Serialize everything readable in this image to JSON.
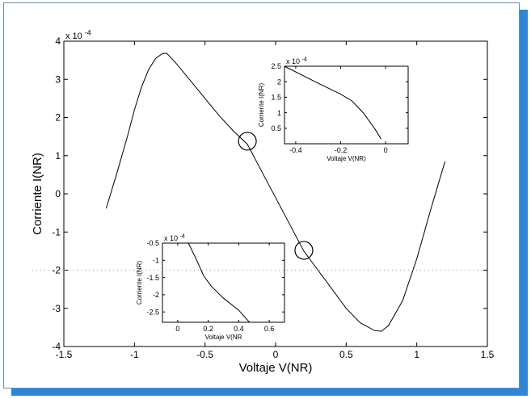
{
  "colors": {
    "frame_shadow": "#2f86d6",
    "line": "#000000",
    "background": "#ffffff"
  },
  "chart_data": [
    {
      "id": "main",
      "type": "line",
      "xlabel": "Voltaje V(NR)",
      "ylabel": "Corriente I(NR)",
      "y_exponent": "x 10",
      "y_exponent_power": "-4",
      "xlim": [
        -1.5,
        1.5
      ],
      "ylim": [
        -4,
        4
      ],
      "xticks": [
        -1.5,
        -1,
        -0.5,
        0,
        0.5,
        1,
        1.5
      ],
      "yticks": [
        -4,
        -3,
        -2,
        -1,
        0,
        1,
        2,
        3,
        4
      ],
      "grid": false,
      "series": [
        {
          "x": [
            -1.2,
            -1.12,
            -1.05,
            -1.0,
            -0.95,
            -0.9,
            -0.85,
            -0.8,
            -0.77,
            -0.7,
            -0.6,
            -0.5,
            -0.4,
            -0.3,
            -0.2,
            -0.1,
            0.0,
            0.1,
            0.2,
            0.3,
            0.4,
            0.5,
            0.6,
            0.7,
            0.75,
            0.8,
            0.9,
            1.0,
            1.1,
            1.2
          ],
          "y": [
            -0.38,
            0.6,
            1.5,
            2.2,
            2.8,
            3.25,
            3.55,
            3.68,
            3.68,
            3.4,
            2.95,
            2.5,
            2.05,
            1.65,
            1.3,
            0.6,
            -0.1,
            -0.8,
            -1.5,
            -2.0,
            -2.5,
            -3.0,
            -3.38,
            -3.58,
            -3.6,
            -3.45,
            -2.8,
            -1.7,
            -0.4,
            0.85
          ]
        }
      ],
      "annotations": [
        {
          "type": "circle",
          "x": -0.2,
          "y": 1.38
        },
        {
          "type": "circle",
          "x": 0.2,
          "y": -1.48
        }
      ]
    },
    {
      "id": "inset-upper",
      "type": "line",
      "xlabel": "Voltaje V(NR)",
      "ylabel": "Corriente I(NR)",
      "y_exponent": "x 10",
      "y_exponent_power": "-4",
      "xlim": [
        -0.45,
        0.1
      ],
      "ylim": [
        0,
        2.5
      ],
      "xticks": [
        -0.4,
        -0.2,
        0
      ],
      "xtick_labels": [
        "-0.4",
        "-0.2",
        "0"
      ],
      "yticks": [
        0.5,
        1,
        1.5,
        2,
        2.5
      ],
      "ytick_labels": [
        "0.5",
        "1",
        "1.5",
        "2",
        "2.5"
      ],
      "series": [
        {
          "x": [
            -0.45,
            -0.3,
            -0.2,
            -0.15,
            -0.1,
            -0.05,
            -0.02
          ],
          "y": [
            2.5,
            1.95,
            1.6,
            1.38,
            1.0,
            0.5,
            0.15
          ]
        }
      ]
    },
    {
      "id": "inset-lower",
      "type": "line",
      "xlabel": "Voltaje V(NR",
      "ylabel": "Corriente I(NR)",
      "y_exponent": "x 10",
      "y_exponent_power": "-4",
      "xlim": [
        -0.1,
        0.7
      ],
      "ylim": [
        -2.8,
        -0.5
      ],
      "xticks": [
        0,
        0.2,
        0.4,
        0.6
      ],
      "xtick_labels": [
        "0",
        "0.2",
        "0.4",
        "0.6"
      ],
      "yticks": [
        -0.5,
        -1,
        -1.5,
        -2,
        -2.5
      ],
      "ytick_labels": [
        "-0.5",
        "-1",
        "-1.5",
        "-2",
        "-2.5"
      ],
      "series": [
        {
          "x": [
            0.07,
            0.12,
            0.17,
            0.22,
            0.3,
            0.4,
            0.47
          ],
          "y": [
            -0.5,
            -0.95,
            -1.45,
            -1.75,
            -2.1,
            -2.45,
            -2.8
          ]
        }
      ]
    }
  ]
}
